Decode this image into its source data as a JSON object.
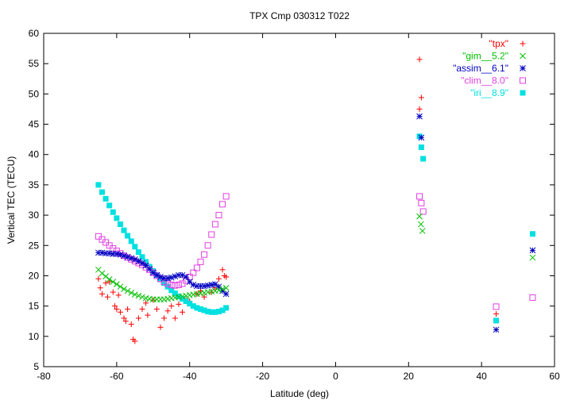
{
  "chart_data": {
    "type": "scatter",
    "title": "TPX Cmp 030312 T022",
    "xlabel": "Latitude (deg)",
    "ylabel": "Vertical TEC (TECU)",
    "xlim": [
      -80,
      60
    ],
    "ylim": [
      5,
      60
    ],
    "xticks": [
      "-80",
      "-60",
      "-40",
      "-20",
      "0",
      "20",
      "40",
      "60"
    ],
    "yticks": [
      "5",
      "10",
      "15",
      "20",
      "25",
      "30",
      "35",
      "40",
      "45",
      "50",
      "55",
      "60"
    ],
    "grid": false,
    "legend_position": "top-right",
    "series": [
      {
        "name": "\"tpx\"",
        "marker": "plus",
        "color": "#ff0000",
        "points": [
          [
            -65,
            19.5
          ],
          [
            -64.5,
            18
          ],
          [
            -64,
            17
          ],
          [
            -63,
            18.8
          ],
          [
            -62.5,
            16.5
          ],
          [
            -62,
            19
          ],
          [
            -61,
            17.3
          ],
          [
            -60.5,
            15
          ],
          [
            -60,
            14.5
          ],
          [
            -59.5,
            16.8
          ],
          [
            -59,
            14
          ],
          [
            -58,
            13
          ],
          [
            -57.5,
            12.5
          ],
          [
            -57,
            14.5
          ],
          [
            -56,
            12
          ],
          [
            -55.5,
            9.5
          ],
          [
            -55,
            9.2
          ],
          [
            -54,
            13
          ],
          [
            -53,
            14.5
          ],
          [
            -52,
            15.5
          ],
          [
            -51.5,
            13.5
          ],
          [
            -50,
            16
          ],
          [
            -49,
            14.5
          ],
          [
            -48,
            11.5
          ],
          [
            -47,
            13
          ],
          [
            -46,
            14.2
          ],
          [
            -45,
            15
          ],
          [
            -44,
            13
          ],
          [
            -43,
            15.3
          ],
          [
            -42,
            14
          ],
          [
            -41,
            16
          ],
          [
            -40,
            15.8
          ],
          [
            -38,
            17
          ],
          [
            -37,
            17.5
          ],
          [
            -36,
            16.5
          ],
          [
            -34,
            17.3
          ],
          [
            -33,
            18
          ],
          [
            -32,
            19.5
          ],
          [
            -31,
            21
          ],
          [
            -30.5,
            20
          ],
          [
            -30,
            19.8
          ],
          [
            23,
            55.7
          ],
          [
            23,
            47.5
          ],
          [
            23.5,
            49.4
          ],
          [
            44,
            13.7
          ]
        ]
      },
      {
        "name": "\"gim__5.2\"",
        "marker": "cross",
        "color": "#00c000",
        "points": [
          [
            -65,
            21
          ],
          [
            -64,
            20.4
          ],
          [
            -63,
            19.9
          ],
          [
            -62,
            19.4
          ],
          [
            -61,
            19
          ],
          [
            -60,
            18.6
          ],
          [
            -59,
            18.2
          ],
          [
            -58,
            17.8
          ],
          [
            -57,
            17.5
          ],
          [
            -56,
            17.2
          ],
          [
            -55,
            16.9
          ],
          [
            -54,
            16.7
          ],
          [
            -53,
            16.5
          ],
          [
            -52,
            16.3
          ],
          [
            -51,
            16.2
          ],
          [
            -50,
            16.1
          ],
          [
            -49,
            16.1
          ],
          [
            -48,
            16.1
          ],
          [
            -47,
            16.1
          ],
          [
            -46,
            16.2
          ],
          [
            -45,
            16.3
          ],
          [
            -44,
            16.4
          ],
          [
            -43,
            16.5
          ],
          [
            -42,
            16.6
          ],
          [
            -41,
            16.7
          ],
          [
            -40,
            16.8
          ],
          [
            -39,
            16.9
          ],
          [
            -38,
            17
          ],
          [
            -37,
            17.1
          ],
          [
            -36,
            17.2
          ],
          [
            -35,
            17.3
          ],
          [
            -34,
            17.4
          ],
          [
            -33,
            17.5
          ],
          [
            -32,
            17.6
          ],
          [
            -31,
            17.8
          ],
          [
            -30,
            18
          ],
          [
            23,
            29.8
          ],
          [
            23.4,
            28.5
          ],
          [
            23.8,
            27.4
          ],
          [
            54,
            23
          ]
        ]
      },
      {
        "name": "\"assim__6.1\"",
        "marker": "star",
        "color": "#0000c0",
        "points": [
          [
            -65,
            23.8
          ],
          [
            -64,
            23.8
          ],
          [
            -63,
            23.7
          ],
          [
            -62,
            23.7
          ],
          [
            -61,
            23.6
          ],
          [
            -60,
            23.6
          ],
          [
            -59,
            23.5
          ],
          [
            -58,
            23.3
          ],
          [
            -57,
            23.1
          ],
          [
            -56,
            22.9
          ],
          [
            -55,
            22.7
          ],
          [
            -54,
            22.4
          ],
          [
            -53,
            22.1
          ],
          [
            -52,
            21.7
          ],
          [
            -51,
            21.1
          ],
          [
            -50,
            20.5
          ],
          [
            -49,
            20.1
          ],
          [
            -48,
            19.8
          ],
          [
            -47,
            19.6
          ],
          [
            -46,
            19.6
          ],
          [
            -45,
            19.7
          ],
          [
            -44,
            19.9
          ],
          [
            -43,
            20.1
          ],
          [
            -42,
            20.1
          ],
          [
            -41,
            19.8
          ],
          [
            -40,
            19
          ],
          [
            -39,
            18.5
          ],
          [
            -38,
            18.3
          ],
          [
            -37,
            18.3
          ],
          [
            -36,
            18.3
          ],
          [
            -35,
            18.4
          ],
          [
            -34,
            18.5
          ],
          [
            -33,
            18.6
          ],
          [
            -32,
            18.2
          ],
          [
            -31,
            17.5
          ],
          [
            -30,
            17
          ],
          [
            23,
            46.3
          ],
          [
            23.5,
            42.8
          ],
          [
            44,
            11.1
          ],
          [
            54,
            24.2
          ]
        ]
      },
      {
        "name": "\"clim__8.0\"",
        "marker": "box",
        "color": "#e040e0",
        "points": [
          [
            -65,
            26.5
          ],
          [
            -64,
            26
          ],
          [
            -63,
            25.5
          ],
          [
            -62,
            25
          ],
          [
            -61,
            24.5
          ],
          [
            -60,
            24.1
          ],
          [
            -59,
            23.7
          ],
          [
            -58,
            23.3
          ],
          [
            -57,
            23
          ],
          [
            -56,
            22.7
          ],
          [
            -55,
            22.4
          ],
          [
            -54,
            22.1
          ],
          [
            -53,
            21.8
          ],
          [
            -52,
            21.4
          ],
          [
            -51,
            21
          ],
          [
            -50,
            20.5
          ],
          [
            -49,
            20
          ],
          [
            -48,
            19.5
          ],
          [
            -47,
            19
          ],
          [
            -46,
            18.7
          ],
          [
            -45,
            18.5
          ],
          [
            -44,
            18.4
          ],
          [
            -43,
            18.5
          ],
          [
            -42,
            18.7
          ],
          [
            -41,
            19.2
          ],
          [
            -40,
            19.8
          ],
          [
            -39,
            20.5
          ],
          [
            -38,
            21.3
          ],
          [
            -37,
            22.3
          ],
          [
            -36,
            23.5
          ],
          [
            -35,
            25
          ],
          [
            -34,
            26.8
          ],
          [
            -33,
            28.5
          ],
          [
            -32,
            30
          ],
          [
            -31,
            31.8
          ],
          [
            -30,
            33.1
          ],
          [
            23,
            33.1
          ],
          [
            23.5,
            32
          ],
          [
            24,
            30.6
          ],
          [
            44,
            14.9
          ],
          [
            54,
            16.4
          ]
        ]
      },
      {
        "name": "\"iri__8.9\"",
        "marker": "filledbox",
        "color": "#00e0e0",
        "points": [
          [
            -65,
            35
          ],
          [
            -64,
            33.8
          ],
          [
            -63,
            32.7
          ],
          [
            -62,
            31.6
          ],
          [
            -61,
            30.5
          ],
          [
            -60,
            29.5
          ],
          [
            -59,
            28.5
          ],
          [
            -58,
            27.5
          ],
          [
            -57,
            26.6
          ],
          [
            -56,
            25.7
          ],
          [
            -55,
            24.8
          ],
          [
            -54,
            23.9
          ],
          [
            -53,
            23.1
          ],
          [
            -52,
            22.3
          ],
          [
            -51,
            21.5
          ],
          [
            -50,
            20.8
          ],
          [
            -49,
            20.1
          ],
          [
            -48,
            19.4
          ],
          [
            -47,
            18.8
          ],
          [
            -46,
            18.2
          ],
          [
            -45,
            17.6
          ],
          [
            -44,
            17.1
          ],
          [
            -43,
            16.6
          ],
          [
            -42,
            16.2
          ],
          [
            -41,
            15.8
          ],
          [
            -40,
            15.4
          ],
          [
            -39,
            15
          ],
          [
            -38,
            14.7
          ],
          [
            -37,
            14.5
          ],
          [
            -36,
            14.3
          ],
          [
            -35,
            14.1
          ],
          [
            -34,
            14
          ],
          [
            -33,
            14
          ],
          [
            -32,
            14.1
          ],
          [
            -31,
            14.3
          ],
          [
            -30,
            14.7
          ],
          [
            23,
            43
          ],
          [
            23.5,
            41.2
          ],
          [
            24,
            39.3
          ],
          [
            44,
            12.6
          ],
          [
            54,
            26.9
          ]
        ]
      }
    ]
  }
}
